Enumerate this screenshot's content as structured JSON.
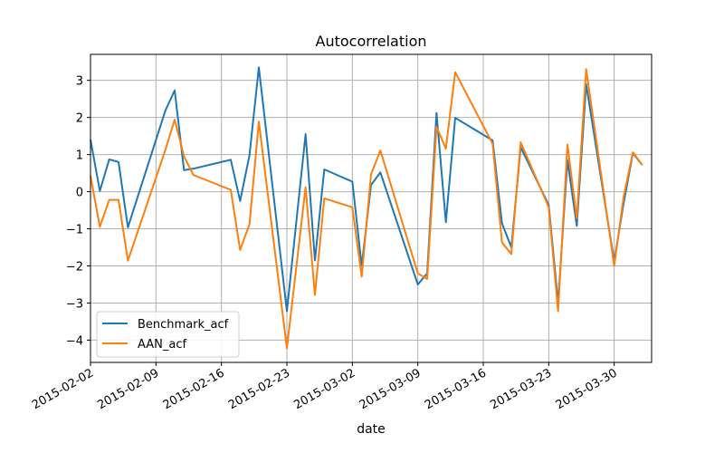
{
  "chart_data": {
    "type": "line",
    "title": "Autocorrelation",
    "xlabel": "date",
    "ylabel": "",
    "ylim": [
      -4.6,
      3.7
    ],
    "xlim": [
      "2015-02-02",
      "2015-04-03"
    ],
    "x_ticks": [
      "2015-02-02",
      "2015-02-09",
      "2015-02-16",
      "2015-02-23",
      "2015-03-02",
      "2015-03-09",
      "2015-03-16",
      "2015-03-23",
      "2015-03-30"
    ],
    "y_ticks": [
      3,
      2,
      1,
      0,
      -1,
      -2,
      -3,
      -4
    ],
    "y_tick_labels": [
      "3",
      "2",
      "1",
      "0",
      "−1",
      "−2",
      "−3",
      "−4"
    ],
    "grid": true,
    "legend_position": "lower-left",
    "x": [
      "2015-02-02",
      "2015-02-03",
      "2015-02-04",
      "2015-02-05",
      "2015-02-06",
      "2015-02-10",
      "2015-02-11",
      "2015-02-12",
      "2015-02-13",
      "2015-02-17",
      "2015-02-18",
      "2015-02-19",
      "2015-02-20",
      "2015-02-23",
      "2015-02-25",
      "2015-02-26",
      "2015-02-27",
      "2015-03-02",
      "2015-03-03",
      "2015-03-04",
      "2015-03-05",
      "2015-03-09",
      "2015-03-10",
      "2015-03-11",
      "2015-03-12",
      "2015-03-13",
      "2015-03-17",
      "2015-03-18",
      "2015-03-19",
      "2015-03-20",
      "2015-03-23",
      "2015-03-24",
      "2015-03-25",
      "2015-03-26",
      "2015-03-27",
      "2015-03-30",
      "2015-03-31",
      "2015-04-01",
      "2015-04-02"
    ],
    "series": [
      {
        "name": "Benchmark_acf",
        "color": "#1f77b4",
        "values": [
          1.4,
          0.02,
          0.87,
          0.8,
          -0.96,
          2.18,
          2.73,
          0.58,
          0.62,
          0.86,
          -0.25,
          0.98,
          3.35,
          -3.22,
          1.55,
          -1.85,
          0.6,
          0.27,
          -2.0,
          0.18,
          0.52,
          -2.5,
          -2.2,
          2.12,
          -0.82,
          1.99,
          1.38,
          -0.85,
          -1.5,
          1.2,
          -0.36,
          -3.0,
          0.85,
          -0.92,
          2.9,
          -1.88,
          -0.32,
          1.04,
          0.72
        ]
      },
      {
        "name": "AAN_acf",
        "color": "#ff7f0e",
        "values": [
          0.43,
          -0.95,
          -0.22,
          -0.22,
          -1.86,
          1.12,
          1.94,
          0.95,
          0.45,
          0.05,
          -1.57,
          -0.88,
          1.89,
          -4.22,
          0.12,
          -2.78,
          -0.18,
          -0.42,
          -2.29,
          0.47,
          1.11,
          -2.2,
          -2.35,
          1.75,
          1.16,
          3.22,
          1.29,
          -1.37,
          -1.68,
          1.33,
          -0.42,
          -3.22,
          1.27,
          -0.72,
          3.3,
          -2.0,
          -0.15,
          1.06,
          0.72
        ]
      }
    ]
  }
}
